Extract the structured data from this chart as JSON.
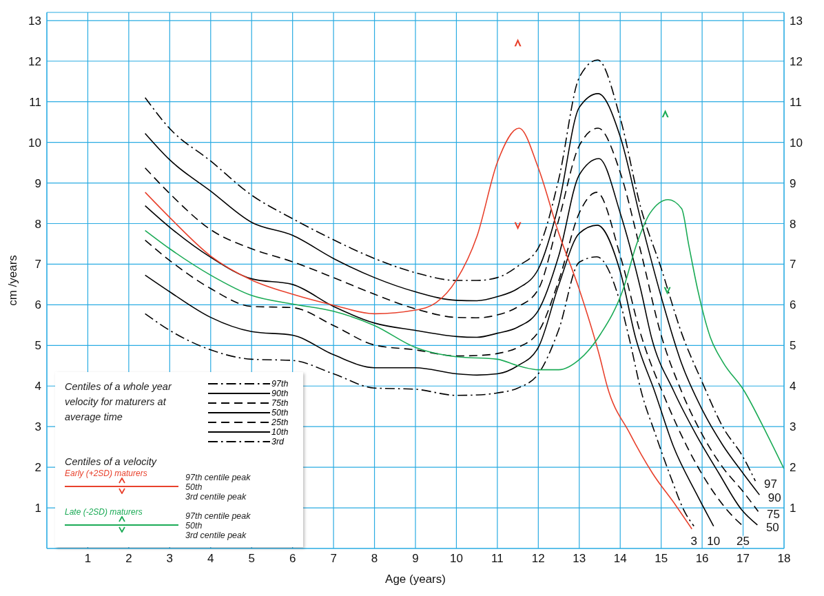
{
  "chart_data": {
    "type": "line",
    "xlabel": "Age (years)",
    "ylabel": "cm /years",
    "legend_title": "Centiles of a whole year velocity for maturers at average time",
    "xlim": [
      0,
      18
    ],
    "xticks": [
      1,
      2,
      3,
      4,
      5,
      6,
      7,
      8,
      9,
      10,
      11,
      12,
      13,
      14,
      15,
      16,
      17,
      18
    ],
    "ylim": [
      0,
      13.2
    ],
    "yticks": [
      1,
      2,
      3,
      4,
      5,
      6,
      7,
      8,
      9,
      10,
      11,
      12,
      13
    ],
    "y2lim": [
      0,
      13.2
    ],
    "y2ticks": [
      1,
      2,
      3,
      4,
      5,
      6,
      7,
      8,
      9,
      10,
      11,
      12,
      13
    ],
    "grid": true,
    "legend": "bottom left",
    "series": [
      {
        "name": "97",
        "color": "#000000",
        "line_style": "dashdot",
        "x": [
          2.4,
          3,
          4,
          5,
          6,
          7,
          8,
          9,
          10,
          10.5,
          11,
          11.5,
          12,
          12.5,
          13,
          13.45,
          14,
          14.5,
          15,
          15.5,
          16,
          16.5,
          17,
          17.3
        ],
        "values": [
          11.1,
          10.34,
          9.54,
          8.7,
          8.12,
          7.6,
          7.14,
          6.79,
          6.6,
          6.6,
          6.67,
          6.95,
          7.4,
          9.1,
          11.6,
          12.03,
          10.6,
          8.4,
          6.9,
          5.3,
          4.1,
          3.0,
          2.25,
          1.66
        ]
      },
      {
        "name": "90",
        "color": "#000000",
        "line_style": "solid",
        "x": [
          2.4,
          3,
          4,
          5,
          6,
          7,
          8,
          9,
          10,
          10.5,
          11,
          11.5,
          12,
          12.5,
          13,
          13.46,
          14,
          14.5,
          15,
          15.5,
          16,
          16.5,
          17,
          17.4
        ],
        "values": [
          10.22,
          9.57,
          8.8,
          8.03,
          7.71,
          7.14,
          6.67,
          6.32,
          6.11,
          6.1,
          6.2,
          6.4,
          6.88,
          8.48,
          10.86,
          11.2,
          10.14,
          8.1,
          6.2,
          4.55,
          3.42,
          2.55,
          1.85,
          1.32
        ]
      },
      {
        "name": "75",
        "color": "#000000",
        "line_style": "dashed",
        "x": [
          2.4,
          3,
          4,
          5,
          6,
          7,
          8,
          9,
          10,
          10.5,
          11,
          11.5,
          12,
          12.5,
          13,
          13.46,
          14,
          14.5,
          15,
          15.5,
          16,
          16.5,
          17,
          17.37
        ],
        "values": [
          9.37,
          8.74,
          7.85,
          7.38,
          7.06,
          6.67,
          6.26,
          5.9,
          5.69,
          5.68,
          5.75,
          5.95,
          6.38,
          8.1,
          9.92,
          10.35,
          9.26,
          7.32,
          5.25,
          3.86,
          2.81,
          2.0,
          1.4,
          0.91
        ]
      },
      {
        "name": "50",
        "color": "#000000",
        "line_style": "solid",
        "x": [
          2.4,
          3,
          4,
          5,
          6,
          7,
          8,
          9,
          10,
          10.5,
          11,
          11.5,
          12,
          12.5,
          13,
          13.48,
          14,
          14.5,
          14.77,
          15.3,
          15.86,
          16.41,
          16.96,
          17.35
        ],
        "values": [
          8.44,
          7.91,
          7.17,
          6.64,
          6.5,
          5.96,
          5.55,
          5.37,
          5.22,
          5.2,
          5.3,
          5.45,
          5.86,
          7.21,
          9.2,
          9.6,
          8.26,
          6.38,
          5.17,
          3.89,
          2.79,
          1.85,
          0.96,
          0.58
        ]
      },
      {
        "name": "25",
        "color": "#000000",
        "line_style": "dashed",
        "x": [
          2.4,
          3,
          4,
          5,
          6,
          7,
          8,
          9,
          10,
          10.5,
          11,
          11.5,
          12,
          12.5,
          13,
          13.43,
          14,
          14.5,
          15.08,
          15.63,
          16.19,
          16.74,
          17.0
        ],
        "values": [
          7.59,
          7.09,
          6.4,
          5.96,
          5.93,
          5.49,
          5.01,
          4.89,
          4.74,
          4.75,
          4.8,
          4.95,
          5.33,
          6.6,
          8.26,
          8.77,
          7.21,
          5.28,
          3.73,
          2.51,
          1.52,
          0.8,
          0.55
        ]
      },
      {
        "name": "10",
        "color": "#000000",
        "line_style": "solid",
        "x": [
          2.4,
          3,
          4,
          5,
          6,
          7,
          8,
          9,
          10,
          10.5,
          11,
          11.5,
          12,
          12.5,
          13,
          13.44,
          14,
          14.38,
          14.85,
          15.3,
          15.86,
          16.28
        ],
        "values": [
          6.73,
          6.32,
          5.69,
          5.34,
          5.25,
          4.77,
          4.45,
          4.45,
          4.3,
          4.27,
          4.3,
          4.5,
          4.95,
          6.49,
          7.76,
          7.96,
          6.82,
          5.17,
          3.84,
          2.51,
          1.35,
          0.55
        ]
      },
      {
        "name": "3",
        "color": "#000000",
        "line_style": "dashdot",
        "x": [
          2.4,
          3,
          4,
          5,
          6,
          7,
          8,
          9,
          10,
          10.5,
          11,
          11.5,
          12,
          12.5,
          13,
          13.43,
          14,
          14.22,
          14.52,
          14.85,
          15.24,
          15.57,
          15.8
        ],
        "values": [
          5.78,
          5.37,
          4.89,
          4.66,
          4.63,
          4.3,
          3.95,
          3.92,
          3.77,
          3.78,
          3.83,
          3.95,
          4.3,
          5.39,
          7.05,
          7.18,
          6.05,
          5.17,
          3.84,
          2.84,
          1.74,
          0.91,
          0.55
        ]
      },
      {
        "name": "Early (+2SD) maturers",
        "color": "#e8412c",
        "line_style": "solid",
        "x": [
          2.4,
          3,
          4,
          5,
          6,
          7,
          8,
          9,
          9.5,
          10,
          10.5,
          11,
          11.53,
          12,
          12.5,
          13,
          13.5,
          13.68,
          14.23,
          14.79,
          15.35,
          15.75
        ],
        "values": [
          8.77,
          8.15,
          7.2,
          6.61,
          6.26,
          5.99,
          5.78,
          5.87,
          6.05,
          6.61,
          7.68,
          9.51,
          10.35,
          9.37,
          7.76,
          6.38,
          4.72,
          4.0,
          2.84,
          1.85,
          1.07,
          0.48
        ]
      },
      {
        "name": "Late (-2SD) maturers",
        "color": "#1aaa55",
        "line_style": "solid",
        "x": [
          2.4,
          3,
          4,
          5,
          6,
          7,
          8,
          9,
          10,
          11,
          11.5,
          12,
          12.5,
          13,
          13.52,
          14.07,
          14.4,
          14.73,
          15.17,
          15.5,
          15.67,
          15.89,
          16.2,
          16.5,
          17.02,
          17.57,
          18
        ],
        "values": [
          7.83,
          7.38,
          6.73,
          6.23,
          6.02,
          5.84,
          5.49,
          4.95,
          4.72,
          4.66,
          4.5,
          4.4,
          4.4,
          4.65,
          5.28,
          6.38,
          7.49,
          8.26,
          8.59,
          8.37,
          7.49,
          6.38,
          5.2,
          4.6,
          3.89,
          2.84,
          1.96
        ]
      },
      {
        "type": "scatter",
        "color": "#e8412c",
        "marker": "triangle",
        "x": [
          11.5,
          11.5
        ],
        "values": [
          12.45,
          7.95
        ]
      },
      {
        "type": "scatter",
        "color": "#1aaa55",
        "marker": "triangle",
        "x": [
          15.1,
          15.15
        ],
        "values": [
          10.7,
          6.35
        ]
      }
    ],
    "annotations": [
      "97th",
      "90th",
      "75th",
      "50th",
      "25th",
      "10th",
      "3rd",
      "Centiles of a velocity",
      "97th centile peak",
      "50th",
      "3rd centile peak",
      "97th centile peak",
      "50th",
      "3rd centile peak"
    ]
  }
}
